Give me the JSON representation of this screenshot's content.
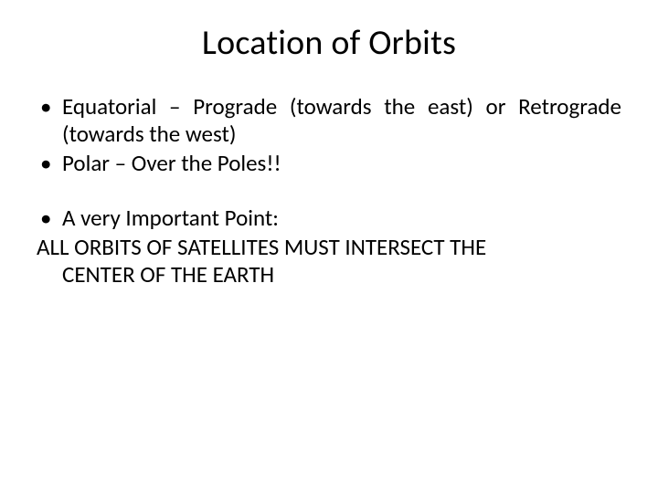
{
  "slide": {
    "title": "Location of Orbits",
    "background_color": "#ffffff",
    "text_color": "#000000",
    "title_fontsize": 38,
    "body_fontsize": 25,
    "bullets_group1": [
      "Equatorial – Prograde (towards the east) or Retrograde (towards the west)",
      "Polar – Over the Poles!!"
    ],
    "bullets_group2": [
      "A very Important Point:"
    ],
    "closing_lines": [
      "ALL ORBITS OF SATELLITES MUST INTERSECT THE",
      "CENTER OF THE EARTH"
    ]
  }
}
